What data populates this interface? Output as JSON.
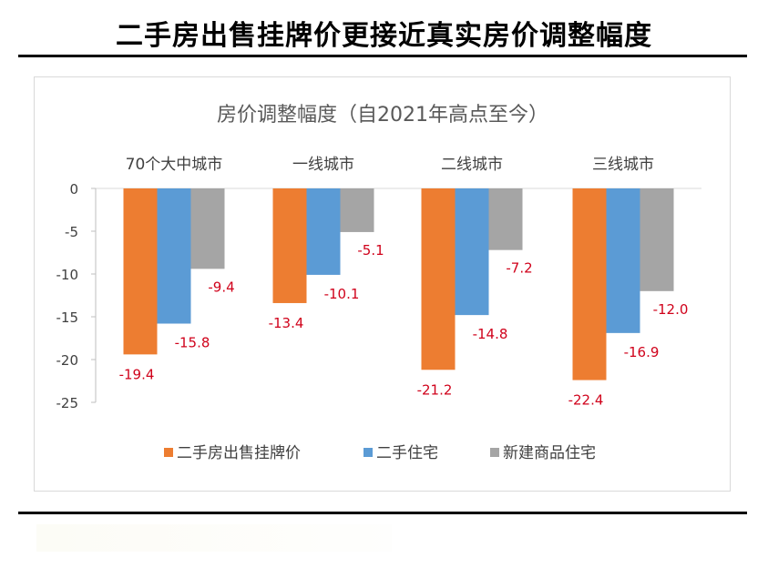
{
  "page_title": "二手房出售挂牌价更接近真实房价调整幅度",
  "chart_data": {
    "type": "bar",
    "title": "房价调整幅度（自2021年高点至今）",
    "categories": [
      "70个大中城市",
      "一线城市",
      "二线城市",
      "三线城市"
    ],
    "series": [
      {
        "name": "二手房出售挂牌价",
        "values": [
          -19.4,
          -13.4,
          -21.2,
          -22.4
        ],
        "color": "#ed7d31"
      },
      {
        "name": "二手住宅",
        "values": [
          -15.8,
          -10.1,
          -14.8,
          -16.9
        ],
        "color": "#5b9bd5"
      },
      {
        "name": "新建商品住宅",
        "values": [
          -9.4,
          -5.1,
          -7.2,
          -12.0
        ],
        "color": "#a5a5a5"
      }
    ],
    "ylim": [
      -25,
      0
    ],
    "yticks": [
      0,
      -5,
      -10,
      -15,
      -20,
      -25
    ],
    "legend": "bottom",
    "xlabel": "",
    "ylabel": "",
    "label_color": "#d0021b"
  }
}
